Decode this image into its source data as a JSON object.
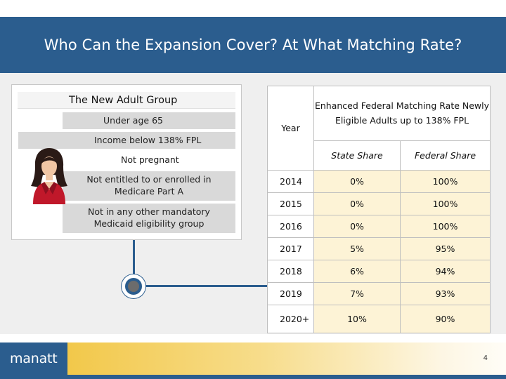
{
  "slide": {
    "title": "Who Can the Expansion Cover? At What Matching Rate?",
    "page_number": "4",
    "logo": "manatt"
  },
  "criteria": {
    "heading": "The New Adult Group",
    "items": [
      "Under age 65",
      "Income below 138% FPL",
      "Not pregnant",
      "Not entitled to or enrolled in Medicare Part A",
      "Not in any other mandatory Medicaid eligibility group"
    ]
  },
  "rates_table": {
    "year_header": "Year",
    "main_header": "Enhanced Federal Matching Rate Newly Eligible Adults up to 138% FPL",
    "state_header": "State Share",
    "federal_header": "Federal Share",
    "rows": [
      {
        "year": "2014",
        "state": "0%",
        "federal": "100%"
      },
      {
        "year": "2015",
        "state": "0%",
        "federal": "100%"
      },
      {
        "year": "2016",
        "state": "0%",
        "federal": "100%"
      },
      {
        "year": "2017",
        "state": "5%",
        "federal": "95%"
      },
      {
        "year": "2018",
        "state": "6%",
        "federal": "94%"
      },
      {
        "year": "2019",
        "state": "7%",
        "federal": "93%"
      },
      {
        "year": "2020+",
        "state": "10%",
        "federal": "90%"
      }
    ]
  },
  "colors": {
    "brand_blue": "#2b5d8e",
    "table_fill": "#fdf3d6",
    "criteria_fill": "#d9d9d9"
  }
}
